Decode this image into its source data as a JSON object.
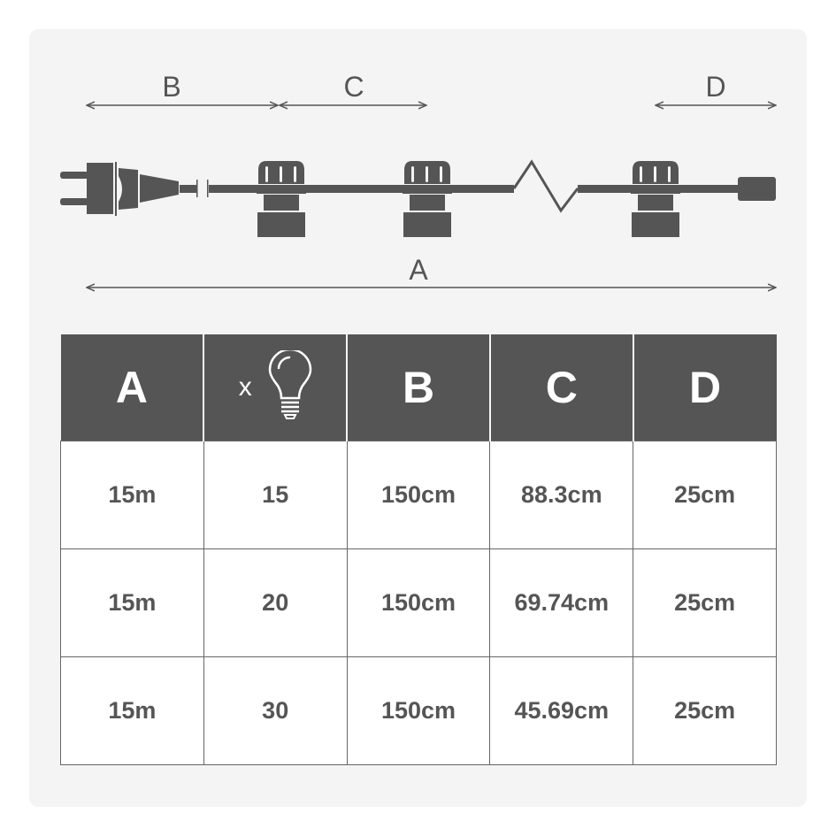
{
  "dimensions": {
    "b_label": "B",
    "c_label": "C",
    "d_label": "D",
    "a_label": "A"
  },
  "table": {
    "headers": [
      "A",
      "x",
      "B",
      "C",
      "D"
    ],
    "header_icon": "light-bulb-icon",
    "rows": [
      [
        "15m",
        "15",
        "150cm",
        "88.3cm",
        "25cm"
      ],
      [
        "15m",
        "20",
        "150cm",
        "69.74cm",
        "25cm"
      ],
      [
        "15m",
        "30",
        "150cm",
        "45.69cm",
        "25cm"
      ]
    ]
  },
  "colors": {
    "dark": "#555555",
    "panel": "#f4f4f4"
  }
}
